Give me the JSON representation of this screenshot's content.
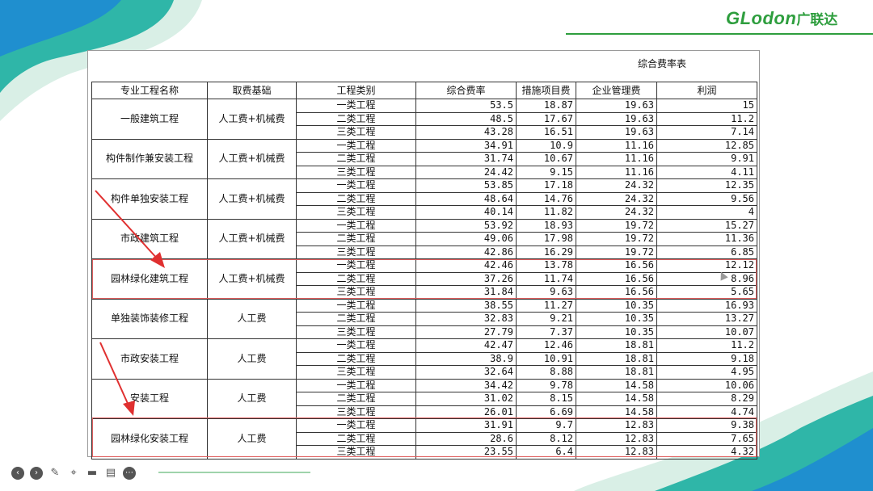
{
  "brand": {
    "logo_text": "GLodon",
    "logo_cn": "广联达",
    "colors": {
      "green": "#2e9e3e",
      "blue": "#1f8fcf",
      "teal": "#2fb6a8"
    }
  },
  "sheet": {
    "title": "综合费率表",
    "headers": [
      "专业工程名称",
      "取费基础",
      "工程类别",
      "综合费率",
      "措施项目费",
      "企业管理费",
      "利润"
    ],
    "groups": [
      {
        "name": "一般建筑工程",
        "base": "人工费+机械费",
        "rows": [
          [
            "一类工程",
            "53.5",
            "18.87",
            "19.63",
            "15"
          ],
          [
            "二类工程",
            "48.5",
            "17.67",
            "19.63",
            "11.2"
          ],
          [
            "三类工程",
            "43.28",
            "16.51",
            "19.63",
            "7.14"
          ]
        ]
      },
      {
        "name": "构件制作兼安装工程",
        "base": "人工费+机械费",
        "rows": [
          [
            "一类工程",
            "34.91",
            "10.9",
            "11.16",
            "12.85"
          ],
          [
            "二类工程",
            "31.74",
            "10.67",
            "11.16",
            "9.91"
          ],
          [
            "三类工程",
            "24.42",
            "9.15",
            "11.16",
            "4.11"
          ]
        ]
      },
      {
        "name": "构件单独安装工程",
        "base": "人工费+机械费",
        "rows": [
          [
            "一类工程",
            "53.85",
            "17.18",
            "24.32",
            "12.35"
          ],
          [
            "二类工程",
            "48.64",
            "14.76",
            "24.32",
            "9.56"
          ],
          [
            "三类工程",
            "40.14",
            "11.82",
            "24.32",
            "4"
          ]
        ]
      },
      {
        "name": "市政建筑工程",
        "base": "人工费+机械费",
        "rows": [
          [
            "一类工程",
            "53.92",
            "18.93",
            "19.72",
            "15.27"
          ],
          [
            "二类工程",
            "49.06",
            "17.98",
            "19.72",
            "11.36"
          ],
          [
            "三类工程",
            "42.86",
            "16.29",
            "19.72",
            "6.85"
          ]
        ]
      },
      {
        "name": "园林绿化建筑工程",
        "base": "人工费+机械费",
        "rows": [
          [
            "一类工程",
            "42.46",
            "13.78",
            "16.56",
            "12.12"
          ],
          [
            "二类工程",
            "37.26",
            "11.74",
            "16.56",
            "8.96"
          ],
          [
            "三类工程",
            "31.84",
            "9.63",
            "16.56",
            "5.65"
          ]
        ]
      },
      {
        "name": "单独装饰装修工程",
        "base": "人工费",
        "rows": [
          [
            "一类工程",
            "38.55",
            "11.27",
            "10.35",
            "16.93"
          ],
          [
            "二类工程",
            "32.83",
            "9.21",
            "10.35",
            "13.27"
          ],
          [
            "三类工程",
            "27.79",
            "7.37",
            "10.35",
            "10.07"
          ]
        ]
      },
      {
        "name": "市政安装工程",
        "base": "人工费",
        "rows": [
          [
            "一类工程",
            "42.47",
            "12.46",
            "18.81",
            "11.2"
          ],
          [
            "二类工程",
            "38.9",
            "10.91",
            "18.81",
            "9.18"
          ],
          [
            "三类工程",
            "32.64",
            "8.88",
            "18.81",
            "4.95"
          ]
        ]
      },
      {
        "name": "安装工程",
        "base": "人工费",
        "rows": [
          [
            "一类工程",
            "34.42",
            "9.78",
            "14.58",
            "10.06"
          ],
          [
            "二类工程",
            "31.02",
            "8.15",
            "14.58",
            "8.29"
          ],
          [
            "三类工程",
            "26.01",
            "6.69",
            "14.58",
            "4.74"
          ]
        ]
      },
      {
        "name": "园林绿化安装工程",
        "base": "人工费",
        "rows": [
          [
            "一类工程",
            "31.91",
            "9.7",
            "12.83",
            "9.38"
          ],
          [
            "二类工程",
            "28.6",
            "8.12",
            "12.83",
            "7.65"
          ],
          [
            "三类工程",
            "23.55",
            "6.4",
            "12.83",
            "4.32"
          ]
        ]
      }
    ]
  },
  "player_controls": [
    {
      "name": "prev-icon",
      "glyph": "‹"
    },
    {
      "name": "next-icon",
      "glyph": "›"
    },
    {
      "name": "pen-icon",
      "glyph": "✎"
    },
    {
      "name": "zoom-icon",
      "glyph": "⌖"
    },
    {
      "name": "camera-icon",
      "glyph": "▬"
    },
    {
      "name": "subtitle-icon",
      "glyph": "▤"
    },
    {
      "name": "more-icon",
      "glyph": "⋯"
    }
  ]
}
